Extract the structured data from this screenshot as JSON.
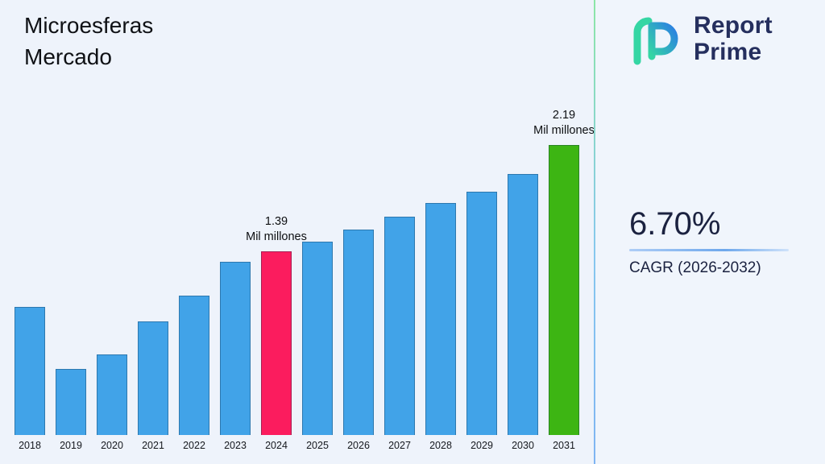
{
  "title": {
    "line1": "Microesferas",
    "line2": "Mercado"
  },
  "logo": {
    "line1": "Report",
    "line2": "Prime"
  },
  "cagr": {
    "value": "6.70%",
    "label": "CAGR (2026-2032)"
  },
  "chart_data": {
    "type": "bar",
    "title": "Microesferas Mercado",
    "xlabel": "",
    "ylabel": "",
    "unit": "Mil millones",
    "categories": [
      "2018",
      "2019",
      "2020",
      "2021",
      "2022",
      "2023",
      "2024",
      "2025",
      "2026",
      "2027",
      "2028",
      "2029",
      "2030",
      "2031"
    ],
    "values": [
      0.97,
      0.5,
      0.61,
      0.86,
      1.05,
      1.31,
      1.39,
      1.46,
      1.55,
      1.65,
      1.75,
      1.84,
      1.97,
      2.19
    ],
    "ylim": [
      0,
      2.19
    ],
    "grid": false,
    "legend": false,
    "bar_roles": [
      "default",
      "default",
      "default",
      "default",
      "default",
      "default",
      "highlight",
      "default",
      "default",
      "default",
      "default",
      "default",
      "default",
      "final"
    ],
    "colors": {
      "default": "#41a3e8",
      "highlight": "#fb1c5e",
      "final": "#3db513"
    },
    "annotations": [
      {
        "category": "2024",
        "value": "1.39",
        "unit": "Mil millones"
      },
      {
        "category": "2031",
        "value": "2.19",
        "unit": "Mil millones"
      }
    ]
  }
}
